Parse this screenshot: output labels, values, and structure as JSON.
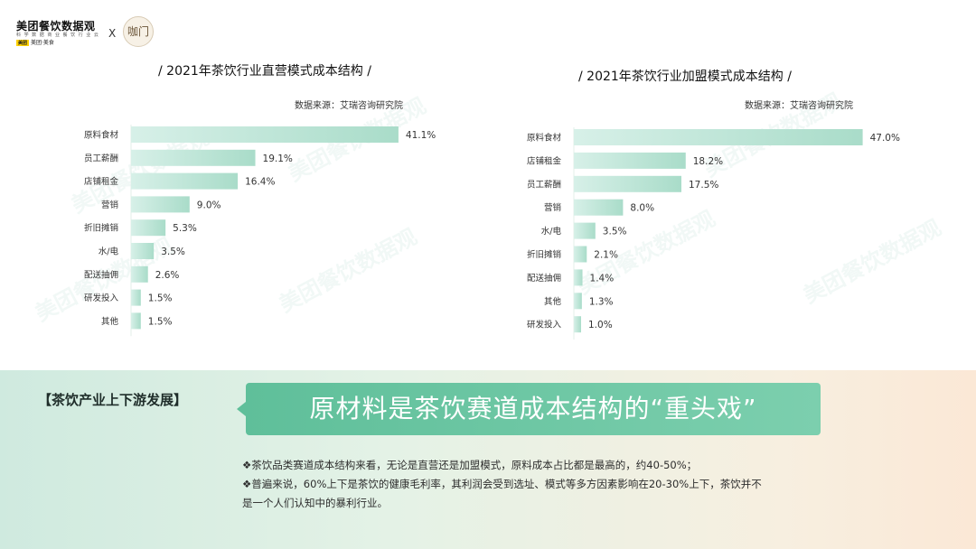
{
  "header": {
    "logo_title": "美团餐饮数据观",
    "logo_subtitle": "科 学 数 据 商 业 餐 饮 行 业 云",
    "logo_brand_mark": "美团",
    "logo_brand_text": "美团·美食",
    "cross": "X",
    "partner_logo_text": "咖门"
  },
  "watermark_text": "美团餐饮数据观",
  "chart_data": [
    {
      "type": "bar",
      "orientation": "horizontal",
      "title": "/ 2021年茶饮行业直营模式成本结构 /",
      "source": "数据来源：艾瑞咨询研究院",
      "categories": [
        "原料食材",
        "员工薪酬",
        "店铺租金",
        "营销",
        "折旧摊销",
        "水/电",
        "配送抽佣",
        "研发投入",
        "其他"
      ],
      "values": [
        41.1,
        19.1,
        16.4,
        9.0,
        5.3,
        3.5,
        2.6,
        1.5,
        1.5
      ],
      "labels": [
        "41.1%",
        "19.1%",
        "16.4%",
        "9.0%",
        "5.3%",
        "3.5%",
        "2.6%",
        "1.5%",
        "1.5%"
      ],
      "unit": "%",
      "color_start": "#d7f0e8",
      "color_end": "#a9dcc9"
    },
    {
      "type": "bar",
      "orientation": "horizontal",
      "title": "/ 2021年茶饮行业加盟模式成本结构 /",
      "source": "数据来源：艾瑞咨询研究院",
      "categories": [
        "原料食材",
        "店铺租金",
        "员工薪酬",
        "营销",
        "水/电",
        "折旧摊销",
        "配送抽佣",
        "其他",
        "研发投入"
      ],
      "values": [
        47.0,
        18.2,
        17.5,
        8.0,
        3.5,
        2.1,
        1.4,
        1.3,
        1.0
      ],
      "labels": [
        "47.0%",
        "18.2%",
        "17.5%",
        "8.0%",
        "3.5%",
        "2.1%",
        "1.4%",
        "1.3%",
        "1.0%"
      ],
      "unit": "%",
      "color_start": "#d7f0e8",
      "color_end": "#a9dcc9"
    }
  ],
  "bottom": {
    "section_tag": "【茶饮产业上下游发展】",
    "headline": "原材料是茶饮赛道成本结构的“重头戏”",
    "bullets": [
      "❖茶饮品类赛道成本结构来看，无论是直营还是加盟模式，原料成本占比都是最高的，约40-50%；",
      "❖普遍来说，60%上下是茶饮的健康毛利率，其利润会受到选址、模式等多方因素影响在20-30%上下，茶饮并不",
      "是一个人们认知中的暴利行业。"
    ]
  }
}
